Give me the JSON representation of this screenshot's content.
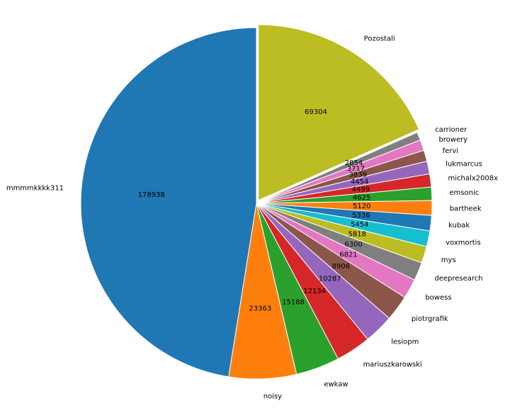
{
  "chart_data": {
    "type": "pie",
    "start_angle_deg": 90,
    "direction": "clockwise",
    "explode": {
      "Pozostali": 0.02
    },
    "slices": [
      {
        "name": "Pozostali",
        "value": 69304,
        "color": "#bcbd22"
      },
      {
        "name": "carrioner",
        "value": 2854,
        "color": "#7f7f7f"
      },
      {
        "name": "browery",
        "value": 3717,
        "color": "#e377c2"
      },
      {
        "name": "fervi",
        "value": 3839,
        "color": "#8c564b"
      },
      {
        "name": "lukmarcus",
        "value": 4454,
        "color": "#9467bd"
      },
      {
        "name": "michalx2008x",
        "value": 4499,
        "color": "#d62728"
      },
      {
        "name": "emsonic",
        "value": 4625,
        "color": "#2ca02c"
      },
      {
        "name": "bartheek",
        "value": 5120,
        "color": "#ff7f0e"
      },
      {
        "name": "kubak",
        "value": 5336,
        "color": "#1f77b4"
      },
      {
        "name": "voxmortis",
        "value": 5454,
        "color": "#17becf"
      },
      {
        "name": "mys",
        "value": 5818,
        "color": "#bcbd22"
      },
      {
        "name": "deepresearch",
        "value": 6300,
        "color": "#7f7f7f"
      },
      {
        "name": "bowess",
        "value": 6821,
        "color": "#e377c2"
      },
      {
        "name": "piotrgrafik",
        "value": 8906,
        "color": "#8c564b"
      },
      {
        "name": "lesiopm",
        "value": 10287,
        "color": "#9467bd"
      },
      {
        "name": "mariuszkarowski",
        "value": 12134,
        "color": "#d62728"
      },
      {
        "name": "ewkaw",
        "value": 15188,
        "color": "#2ca02c"
      },
      {
        "name": "noisy",
        "value": 23363,
        "color": "#ff7f0e"
      },
      {
        "name": "mmmmkkkk311",
        "value": 178938,
        "color": "#1f77b4"
      }
    ]
  }
}
